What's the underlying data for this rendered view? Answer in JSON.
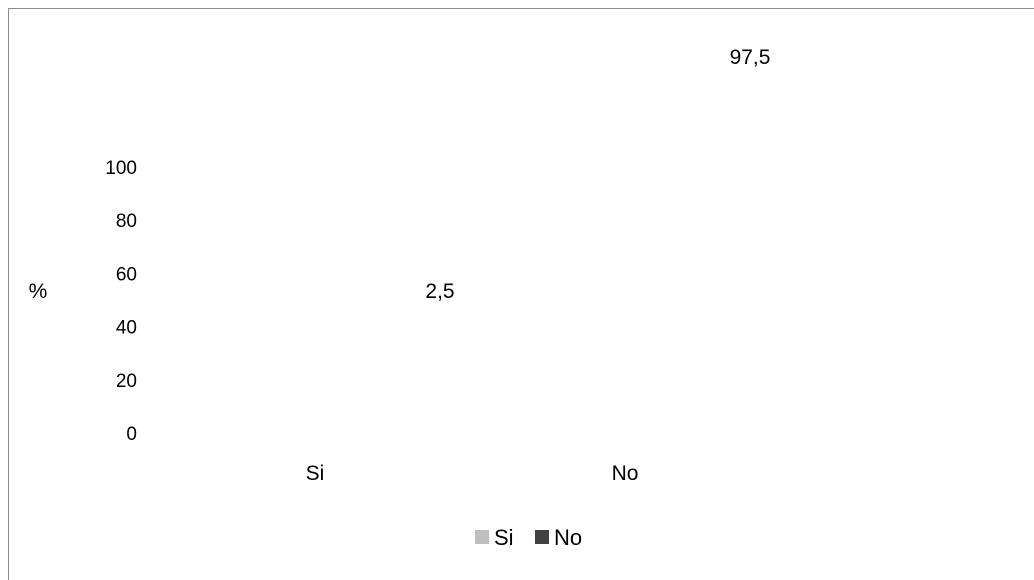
{
  "chart_data": {
    "type": "bar",
    "title": "",
    "xlabel": "",
    "ylabel": "%",
    "categories": [
      "Si",
      "No"
    ],
    "values": [
      2.5,
      97.5
    ],
    "data_labels": [
      "2,5",
      "97,5"
    ],
    "yticks": [
      0,
      20,
      40,
      60,
      80,
      100
    ],
    "ylim": [
      0,
      100
    ],
    "grid": false,
    "legend": {
      "placement": "bottom",
      "entries": [
        {
          "label": "Si",
          "color": "#bfbfbf"
        },
        {
          "label": "No",
          "color": "#404040"
        }
      ]
    }
  }
}
